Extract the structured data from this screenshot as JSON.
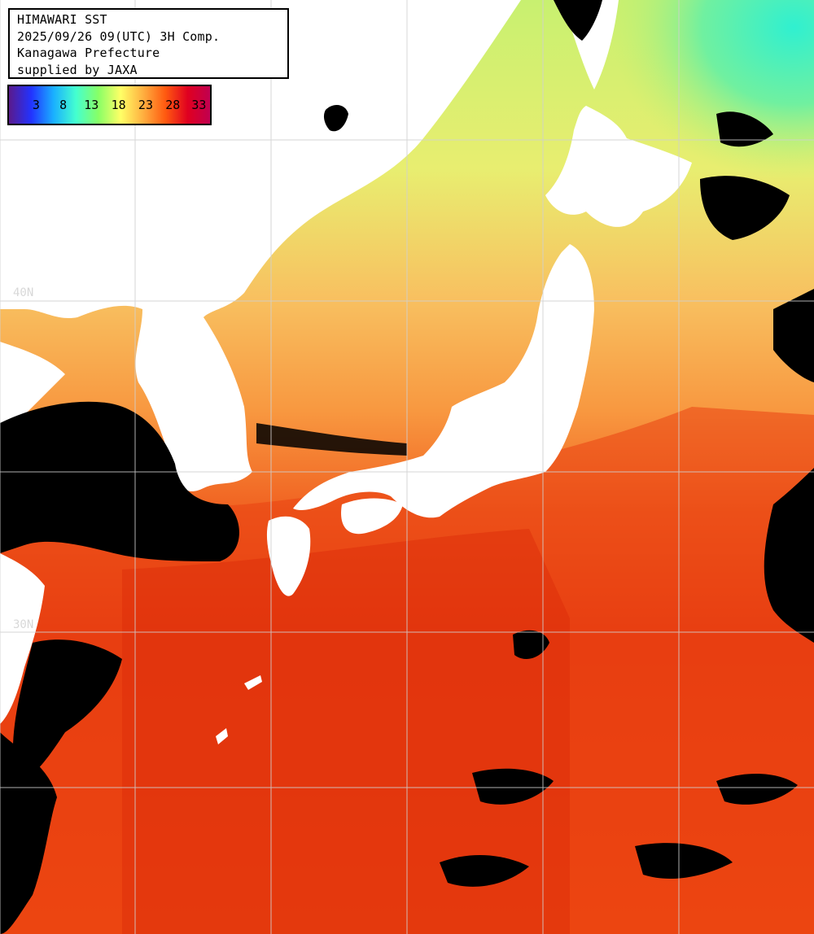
{
  "header": {
    "line1": "HIMAWARI SST",
    "line2": "2025/09/26 09(UTC) 3H Comp.",
    "line3": "Kanagawa Prefecture",
    "line4": "supplied by JAXA"
  },
  "legend": {
    "labels": [
      "3",
      "8",
      "13",
      "18",
      "23",
      "28",
      "33"
    ],
    "colors": [
      "#5a1a8c",
      "#2233ff",
      "#1ab0ff",
      "#44ffd0",
      "#88ff66",
      "#ffff66",
      "#ffb040",
      "#ff5a10",
      "#e00020",
      "#c00050"
    ]
  },
  "grid": {
    "latitude_labels": [
      "40N",
      "30N"
    ]
  },
  "colors": {
    "land": "#ffffff",
    "no_data": "#000000",
    "grid_line": "#cfcfcf",
    "sst_cold": "#40f0c0",
    "sst_cool": "#a8f070",
    "sst_mild": "#e8f070",
    "sst_warm": "#f8b050",
    "sst_hot": "#f05010",
    "sst_hottest": "#e02a08"
  }
}
